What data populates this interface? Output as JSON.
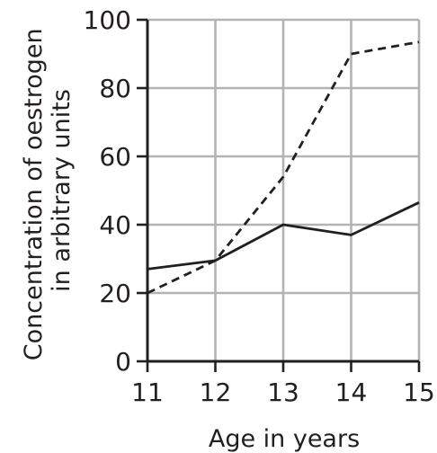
{
  "chart_data": {
    "type": "line",
    "xlabel": "Age in years",
    "ylabel": [
      "Concentration of oestrogen",
      "in arbitrary units"
    ],
    "xlim": [
      11,
      15
    ],
    "ylim": [
      0,
      100
    ],
    "x_ticks": [
      11,
      12,
      13,
      14,
      15
    ],
    "y_ticks": [
      0,
      20,
      40,
      60,
      80,
      100
    ],
    "grid": true,
    "legend": "none",
    "series": [
      {
        "style": "solid",
        "color": "#231f20",
        "x": [
          11,
          12,
          13,
          14,
          15
        ],
        "y": [
          27,
          29.5,
          40,
          37,
          46.5
        ]
      },
      {
        "style": "dashed",
        "color": "#231f20",
        "x": [
          11,
          12,
          13,
          14,
          15
        ],
        "y": [
          20,
          29.5,
          54,
          90,
          93.5
        ]
      }
    ]
  }
}
